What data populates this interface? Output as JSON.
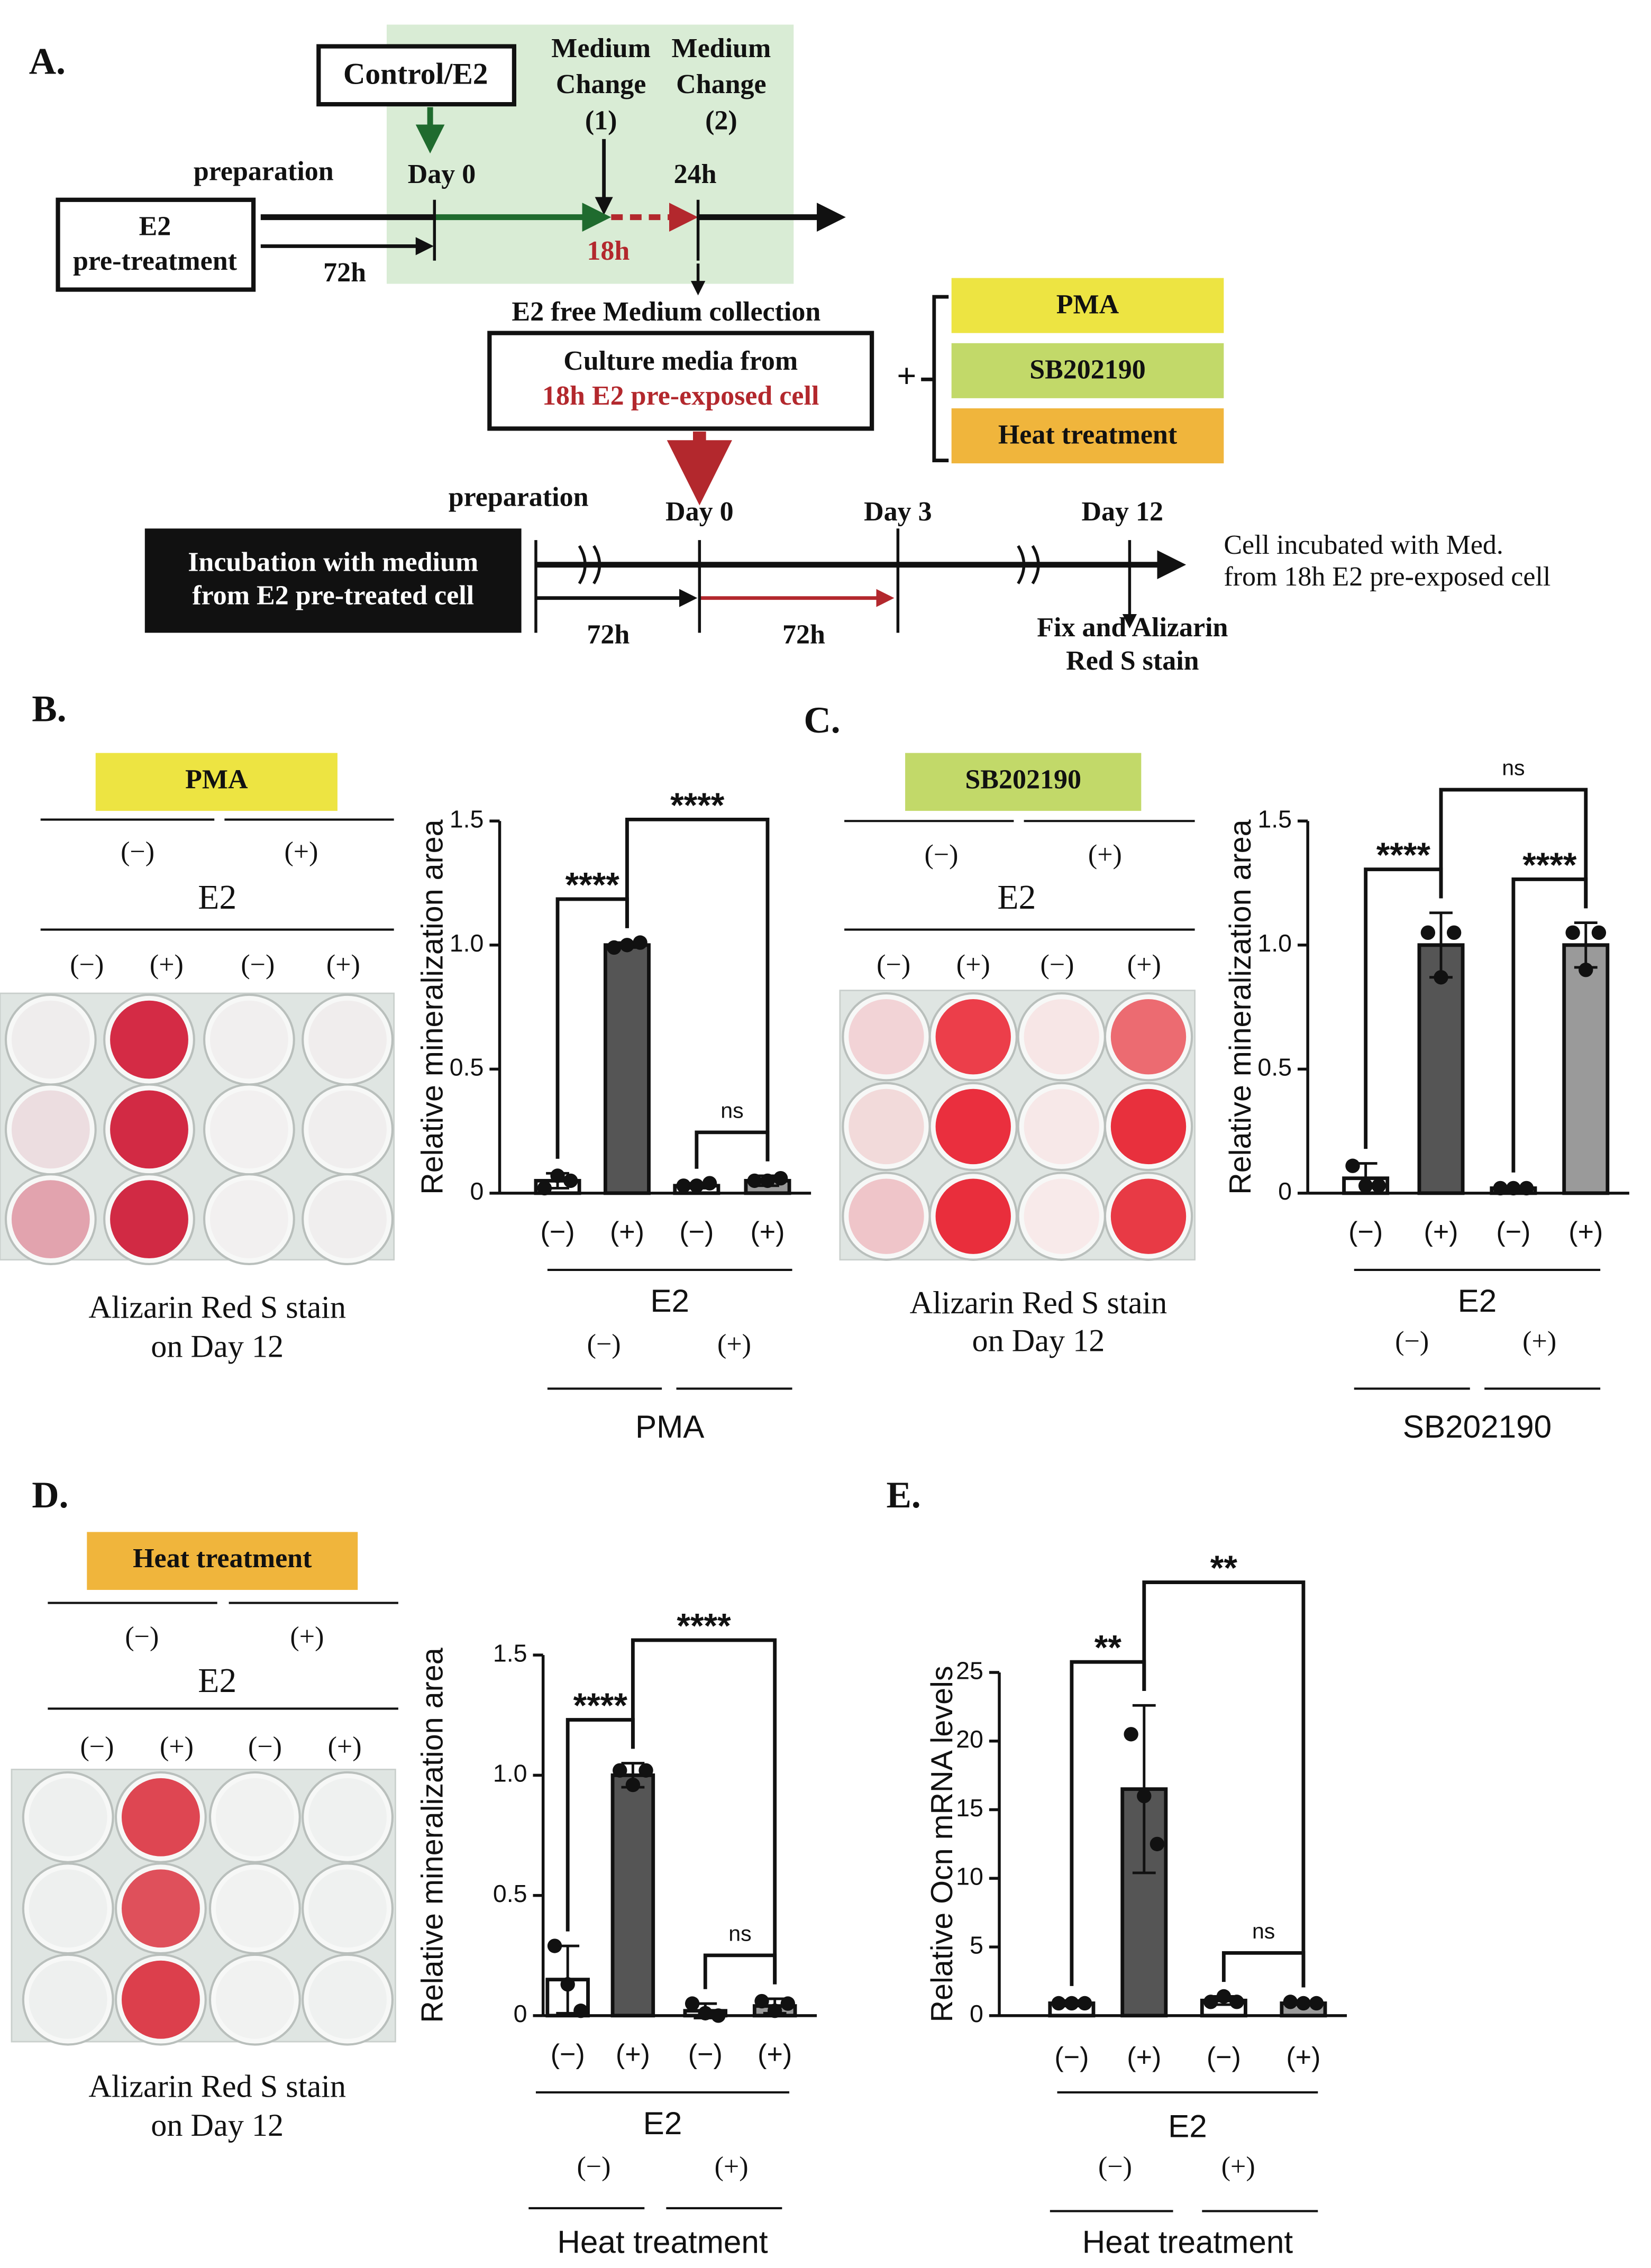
{
  "diagram": {
    "panel_label": "A.",
    "control": "Control/E2",
    "medium_change_1": [
      "Medium",
      "Change",
      "(1)"
    ],
    "medium_change_2": [
      "Medium",
      "Change",
      "(2)"
    ],
    "preparation_1": "preparation",
    "day0_1": "Day 0",
    "time_24h": "24h",
    "pretreatment": [
      "E2",
      "pre-treatment"
    ],
    "time_72h_1": "72h",
    "time_18h": "18h",
    "collection": "E2 free Medium collection",
    "culture": [
      "Culture media from",
      "18h E2 pre-exposed cell"
    ],
    "plus": "+",
    "treatments": [
      "PMA",
      "SB202190",
      "Heat treatment"
    ],
    "preparation_2": "preparation",
    "incubation": [
      "Incubation with medium",
      "from E2 pre-treated cell"
    ],
    "day0_2": "Day 0",
    "day3": "Day 3",
    "day12": "Day 12",
    "time_72h_2": "72h",
    "time_72h_3": "72h",
    "result": [
      "Cell incubated with Med.",
      " from 18h E2 pre-exposed cell"
    ],
    "fix": [
      "Fix and Alizarin",
      "Red S stain"
    ]
  },
  "plates": [
    {
      "panel_label": "B.",
      "treatment": "PMA",
      "treatment_color": "#ede442",
      "treatment_signs": [
        "(−)",
        "(+)"
      ],
      "e2": "E2",
      "e2_signs": [
        "(−)",
        "(+)",
        "(−)",
        "(+)"
      ],
      "caption": [
        "Alizarin Red S stain",
        "on Day 12"
      ],
      "wells": [
        [
          "#efeded",
          "#d42b45",
          "#f1efef",
          "#f0eded"
        ],
        [
          "#ecdde0",
          "#d22a44",
          "#f2f0f0",
          "#f0eeee"
        ],
        [
          "#e2a3ae",
          "#d12a44",
          "#f2f0f0",
          "#f0eeee"
        ]
      ]
    },
    {
      "panel_label": "C.",
      "treatment": "SB202190",
      "treatment_color": "#c2d969",
      "treatment_signs": [
        "(−)",
        "(+)"
      ],
      "e2": "E2",
      "e2_signs": [
        "(−)",
        "(+)",
        "(−)",
        "(+)"
      ],
      "caption": [
        "Alizarin Red S stain",
        "on Day 12"
      ],
      "wells": [
        [
          "#f2d3d6",
          "#ec3e4a",
          "#f7e6e6",
          "#ec6b71"
        ],
        [
          "#f2dada",
          "#ea2f3e",
          "#f7e8e8",
          "#e8303d"
        ],
        [
          "#efc5c9",
          "#e92e3c",
          "#f8eaea",
          "#e83a45"
        ]
      ]
    },
    {
      "panel_label": "D.",
      "treatment": "Heat treatment",
      "treatment_color": "#f0b53c",
      "treatment_signs": [
        "(−)",
        "(+)"
      ],
      "e2": "E2",
      "e2_signs": [
        "(−)",
        "(+)",
        "(−)",
        "(+)"
      ],
      "caption": [
        "Alizarin Red S stain",
        "on Day 12"
      ],
      "wells": [
        [
          "#eef0ef",
          "#de4652",
          "#f1f2f1",
          "#eff1f0"
        ],
        [
          "#eef0ef",
          "#df505b",
          "#f1f2f1",
          "#eff1f0"
        ],
        [
          "#eef0ef",
          "#dc3f4c",
          "#f1f2f1",
          "#eff1f0"
        ]
      ]
    }
  ],
  "chart_data": [
    {
      "type": "bar",
      "y_label": "Relative mineralization area",
      "categories": [
        "(−)",
        "(+)",
        "(−)",
        "(+)"
      ],
      "values": [
        0.05,
        1.0,
        0.03,
        0.05
      ],
      "errors": [
        0.03,
        0.01,
        0.01,
        0.02
      ],
      "points": [
        [
          0.02,
          0.07,
          0.05
        ],
        [
          0.99,
          1.0,
          1.01
        ],
        [
          0.03,
          0.03,
          0.04
        ],
        [
          0.05,
          0.05,
          0.06
        ]
      ],
      "bar_colors": [
        "#ffffff",
        "#555555",
        "#ffffff",
        "#9a9a9a"
      ],
      "ylim": [
        0,
        1.5
      ],
      "yticks": [
        0,
        0.5,
        {
          "value": 1,
          "label": "1.0"
        },
        1.5
      ],
      "annotations": [
        {
          "from": 0,
          "to": 1,
          "label": "****"
        },
        {
          "from": 2,
          "to": 3,
          "label": "ns"
        },
        {
          "from": 1,
          "to": 3,
          "label": "****"
        }
      ],
      "x_group": "E2",
      "group_signs": [
        "(−)",
        "(+)"
      ],
      "group_label": "PMA"
    },
    {
      "type": "bar",
      "y_label": "Relative mineralization area",
      "categories": [
        "(−)",
        "(+)",
        "(−)",
        "(+)"
      ],
      "values": [
        0.06,
        1.0,
        0.02,
        1.0
      ],
      "errors": [
        0.06,
        0.13,
        0.005,
        0.09
      ],
      "points": [
        [
          0.11,
          0.03,
          0.03
        ],
        [
          1.05,
          0.87,
          1.05
        ],
        [
          0.02,
          0.02,
          0.02
        ],
        [
          1.05,
          0.9,
          1.05
        ]
      ],
      "bar_colors": [
        "#ffffff",
        "#555555",
        "#ffffff",
        "#9a9a9a"
      ],
      "ylim": [
        0,
        1.5
      ],
      "yticks": [
        0,
        0.5,
        {
          "value": 1,
          "label": "1.0"
        },
        1.5
      ],
      "annotations": [
        {
          "from": 0,
          "to": 1,
          "label": "****"
        },
        {
          "from": 2,
          "to": 3,
          "label": "****"
        },
        {
          "from": 1,
          "to": 3,
          "label": "ns"
        }
      ],
      "x_group": "E2",
      "group_signs": [
        "(−)",
        "(+)"
      ],
      "group_label": "SB202190"
    },
    {
      "type": "bar",
      "y_label": "Relative mineralization area",
      "categories": [
        "(−)",
        "(+)",
        "(−)",
        "(+)"
      ],
      "values": [
        0.15,
        1.0,
        0.02,
        0.04
      ],
      "errors": [
        0.14,
        0.05,
        0.03,
        0.03
      ],
      "points": [
        [
          0.29,
          0.13,
          0.02
        ],
        [
          1.02,
          0.96,
          1.02
        ],
        [
          0.05,
          0.01,
          0.0
        ],
        [
          0.06,
          0.02,
          0.05
        ]
      ],
      "bar_colors": [
        "#ffffff",
        "#555555",
        "#ffffff",
        "#9a9a9a"
      ],
      "ylim": [
        0,
        1.5
      ],
      "yticks": [
        0,
        0.5,
        {
          "value": 1,
          "label": "1.0"
        },
        1.5
      ],
      "annotations": [
        {
          "from": 0,
          "to": 1,
          "label": "****"
        },
        {
          "from": 2,
          "to": 3,
          "label": "ns"
        },
        {
          "from": 1,
          "to": 3,
          "label": "****"
        }
      ],
      "x_group": "E2",
      "group_signs": [
        "(−)",
        "(+)"
      ],
      "group_label": "Heat treatment"
    },
    {
      "type": "bar",
      "panel_label": "E.",
      "y_label": "Relative Ocn mRNA levels",
      "categories": [
        "(−)",
        "(+)",
        "(−)",
        "(+)"
      ],
      "values": [
        0.9,
        16.5,
        1.1,
        0.9
      ],
      "errors": [
        0.2,
        6.1,
        0.3,
        0.1
      ],
      "points": [
        [
          0.9,
          0.9,
          0.9
        ],
        [
          20.5,
          16,
          12.5
        ],
        [
          1.0,
          1.4,
          1.0
        ],
        [
          1.0,
          0.9,
          0.9
        ]
      ],
      "bar_colors": [
        "#ffffff",
        "#555555",
        "#ffffff",
        "#9a9a9a"
      ],
      "ylim": [
        0,
        25
      ],
      "yticks": [
        0,
        5,
        10,
        15,
        20,
        25
      ],
      "annotations": [
        {
          "from": 0,
          "to": 1,
          "label": "**"
        },
        {
          "from": 2,
          "to": 3,
          "label": "ns"
        },
        {
          "from": 1,
          "to": 3,
          "label": "**"
        }
      ],
      "x_group": "E2",
      "group_signs": [
        "(−)",
        "(+)"
      ],
      "group_label": "Heat treatment"
    }
  ]
}
